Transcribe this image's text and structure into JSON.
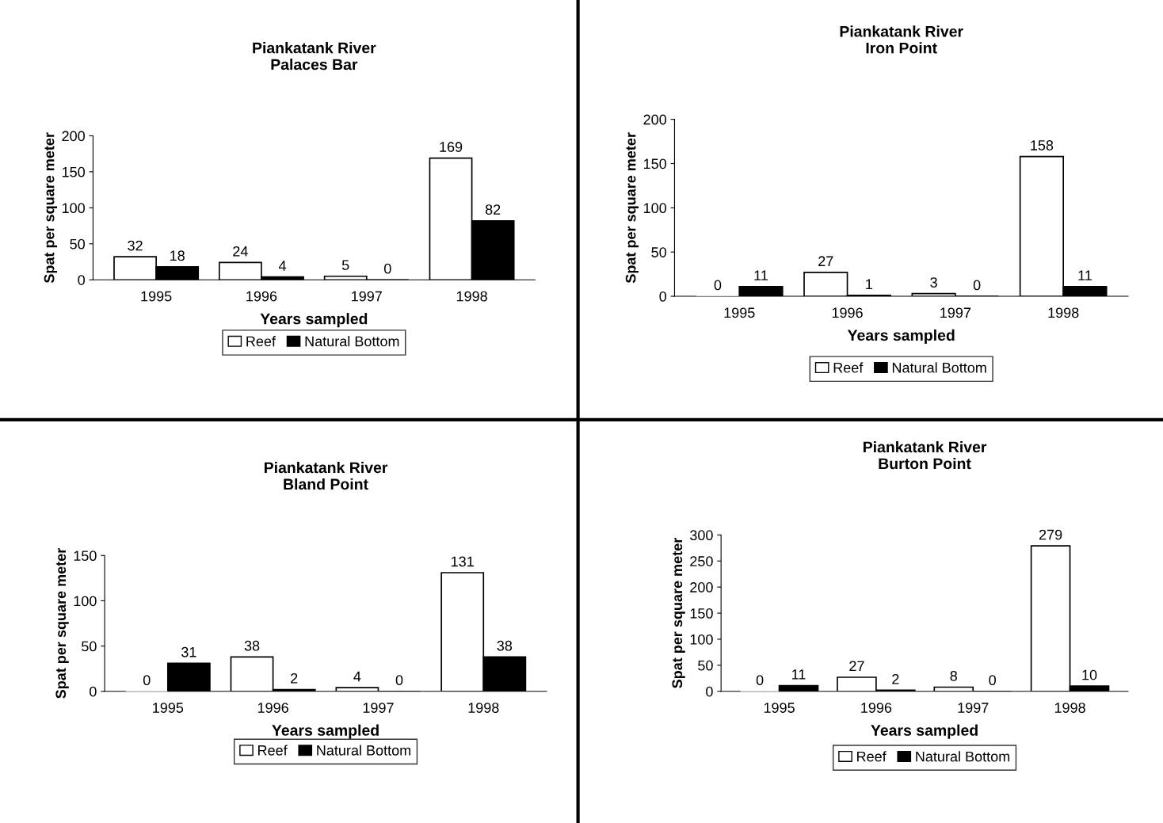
{
  "chart_data": [
    {
      "type": "bar",
      "title": "Piankatank River\nPalaces Bar",
      "xlabel": "Years sampled",
      "ylabel": "Spat per square meter",
      "categories": [
        "1995",
        "1996",
        "1997",
        "1998"
      ],
      "series": [
        {
          "name": "Reef",
          "color": "#ffffff",
          "values": [
            32,
            24,
            5,
            169
          ]
        },
        {
          "name": "Natural Bottom",
          "color": "#000000",
          "values": [
            18,
            4,
            0,
            82
          ]
        }
      ],
      "ylim": [
        0,
        200
      ],
      "yticks": [
        0,
        50,
        100,
        150,
        200
      ],
      "grid": false,
      "legend": "bottom",
      "data_labels": true
    },
    {
      "type": "bar",
      "title": "Piankatank River\nIron Point",
      "xlabel": "Years sampled",
      "ylabel": "Spat per square meter",
      "categories": [
        "1995",
        "1996",
        "1997",
        "1998"
      ],
      "series": [
        {
          "name": "Reef",
          "color": "#ffffff",
          "values": [
            0,
            27,
            3,
            158
          ]
        },
        {
          "name": "Natural Bottom",
          "color": "#000000",
          "values": [
            11,
            1,
            0,
            11
          ]
        }
      ],
      "ylim": [
        0,
        200
      ],
      "yticks": [
        0,
        50,
        100,
        150,
        200
      ],
      "grid": false,
      "legend": "bottom",
      "data_labels": true
    },
    {
      "type": "bar",
      "title": "Piankatank River\nBland Point",
      "xlabel": "Years sampled",
      "ylabel": "Spat per square meter",
      "categories": [
        "1995",
        "1996",
        "1997",
        "1998"
      ],
      "series": [
        {
          "name": "Reef",
          "color": "#ffffff",
          "values": [
            0,
            38,
            4,
            131
          ]
        },
        {
          "name": "Natural Bottom",
          "color": "#000000",
          "values": [
            31,
            2,
            0,
            38
          ]
        }
      ],
      "ylim": [
        0,
        150
      ],
      "yticks": [
        0,
        50,
        100,
        150
      ],
      "grid": false,
      "legend": "bottom",
      "data_labels": true
    },
    {
      "type": "bar",
      "title": "Piankatank River\nBurton Point",
      "xlabel": "Years sampled",
      "ylabel": "Spat per square meter",
      "categories": [
        "1995",
        "1996",
        "1997",
        "1998"
      ],
      "series": [
        {
          "name": "Reef",
          "color": "#ffffff",
          "values": [
            0,
            27,
            8,
            279
          ]
        },
        {
          "name": "Natural Bottom",
          "color": "#000000",
          "values": [
            11,
            2,
            0,
            10
          ]
        }
      ],
      "ylim": [
        0,
        300
      ],
      "yticks": [
        0,
        50,
        100,
        150,
        200,
        250,
        300
      ],
      "grid": false,
      "legend": "bottom",
      "data_labels": true
    }
  ]
}
